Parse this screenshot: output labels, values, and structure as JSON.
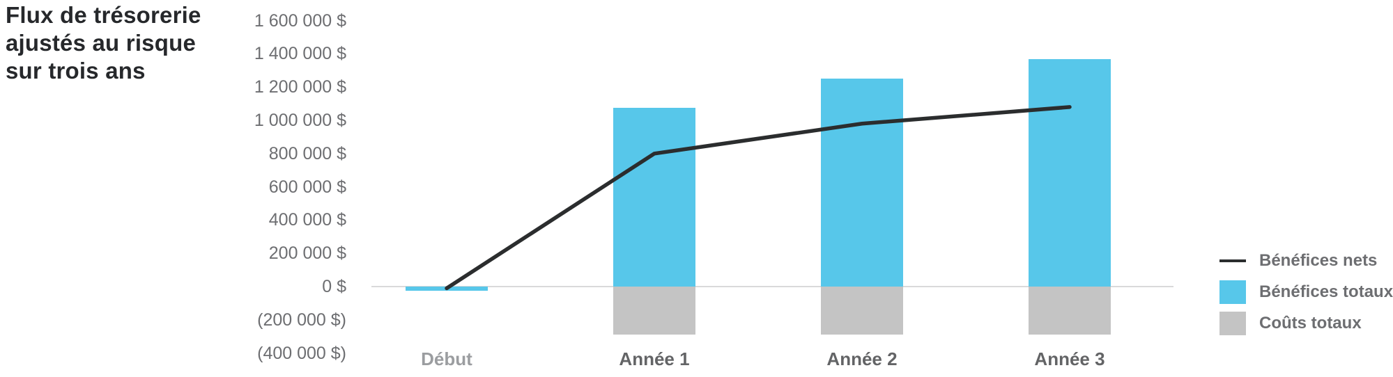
{
  "title": {
    "text": "Flux de trésorerie ajustés au risque sur trois ans",
    "lines": [
      "Flux de trésorerie",
      "ajustés au risque",
      "sur trois ans"
    ]
  },
  "colors": {
    "background": "#FFFFFF",
    "title_text": "#26282B",
    "axis_text": "#6D6E71",
    "category_muted": "#9B9DA0",
    "category_default": "#636466",
    "zero_line": "#D9D9DA",
    "legend_text": "#6D6E71",
    "blue_bar": "#57C7EA",
    "gray_bar": "#C4C4C4",
    "net_line": "#2B2D2E"
  },
  "chart_data": {
    "type": "combo-bar-line",
    "title": "Flux de trésorerie ajustés au risque sur trois ans",
    "categories": [
      "Début",
      "Année 1",
      "Année 2",
      "Année 3"
    ],
    "category_label_colors": [
      "#9B9DA0",
      "#636466",
      "#636466",
      "#636466"
    ],
    "series": [
      {
        "name": "Bénéfices nets",
        "type": "line",
        "color": "#2B2D2E",
        "values": [
          -10000,
          800000,
          980000,
          1080000
        ]
      },
      {
        "name": "Bénéfices totaux",
        "type": "bar",
        "color": "#57C7EA",
        "values": [
          -25000,
          1075000,
          1250000,
          1370000
        ]
      },
      {
        "name": "Coûts totaux",
        "type": "bar",
        "color": "#C4C4C4",
        "values": [
          0,
          -290000,
          -290000,
          -290000
        ]
      }
    ],
    "y_ticks": [
      {
        "label": "1 600 000 $",
        "value": 1600000
      },
      {
        "label": "1 400 000 $",
        "value": 1400000
      },
      {
        "label": "1 200 000 $",
        "value": 1200000
      },
      {
        "label": "1 000 000 $",
        "value": 1000000
      },
      {
        "label": "800 000 $",
        "value": 800000
      },
      {
        "label": "600 000 $",
        "value": 600000
      },
      {
        "label": "400 000 $",
        "value": 400000
      },
      {
        "label": "200 000 $",
        "value": 200000
      },
      {
        "label": "0 $",
        "value": 0
      },
      {
        "label": "(200 000 $)",
        "value": -200000
      },
      {
        "label": "(400 000 $)",
        "value": -400000
      }
    ],
    "ylim": [
      -400000,
      1600000
    ],
    "grid": false,
    "legend_position": "right"
  },
  "legend": {
    "items": [
      {
        "label": "Bénéfices nets",
        "swatch": "line"
      },
      {
        "label": "Bénéfices totaux",
        "swatch": "blue-square"
      },
      {
        "label": "Coûts totaux",
        "swatch": "gray-square"
      }
    ]
  }
}
